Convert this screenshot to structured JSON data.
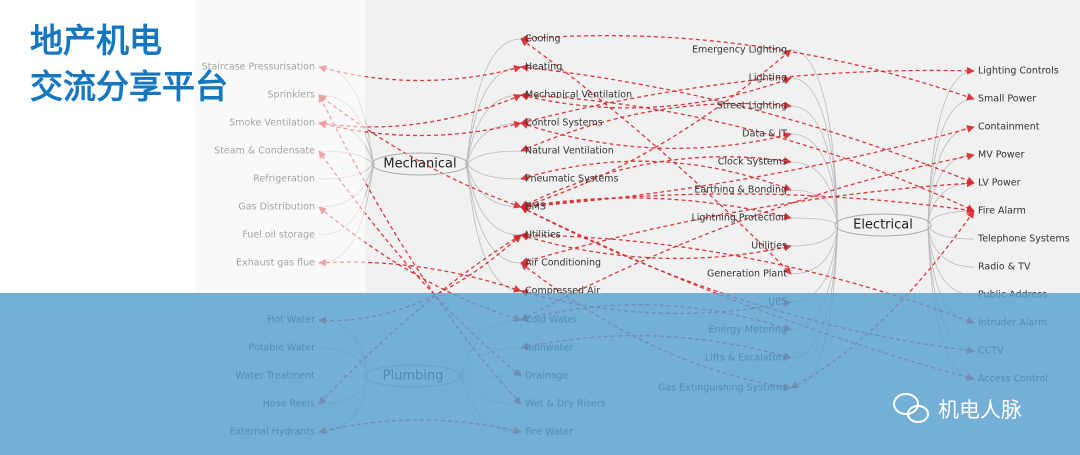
{
  "header": {
    "title": [
      "地产机电",
      "交流分享平台"
    ]
  },
  "watermark": "机电人脉",
  "hubs": {
    "mechanical": "Mechanical",
    "electrical": "Electrical",
    "plumbing": "Plumbing"
  },
  "columns": {
    "far_left": [
      "Staircase Pressurisation",
      "Sprinklers",
      "Smoke Ventilation",
      "Steam & Condensate",
      "Refrigeration",
      "Gas Distribution",
      "Fuel oil storage",
      "Exhaust gas flue",
      "Hot Water",
      "Potable Water",
      "Water Treatment",
      "Hose Reels",
      "External Hydrants"
    ],
    "services": [
      "Cooling",
      "Heating",
      "Mechanical Ventilation",
      "Control Systems",
      "Natural Ventilation",
      "Pneumatic Systems",
      "BMS",
      "Utilities",
      "Air Conditioning",
      "Compressed Air",
      "Cold Water",
      "Rainwater",
      "Drainage",
      "Wet & Dry Risers",
      "Fire Water"
    ],
    "electrical_services": [
      "Emergency Lighting",
      "Lighting",
      "Street Lighting",
      "Data & IT",
      "Clock Systems",
      "Earthing & Bonding",
      "Lightning Protection",
      "Utilities",
      "Generation Plant",
      "UPS",
      "Energy Metering",
      "Lifts & Escalators",
      "Gas Extinguishing Systems"
    ],
    "electrical_systems": [
      "Lighting Controls",
      "Small Power",
      "Containment",
      "MV Power",
      "LV Power",
      "Fire Alarm",
      "Telephone Systems",
      "Radio & TV",
      "Public Address",
      "Intruder Alarm",
      "CCTV",
      "Access Control"
    ]
  }
}
